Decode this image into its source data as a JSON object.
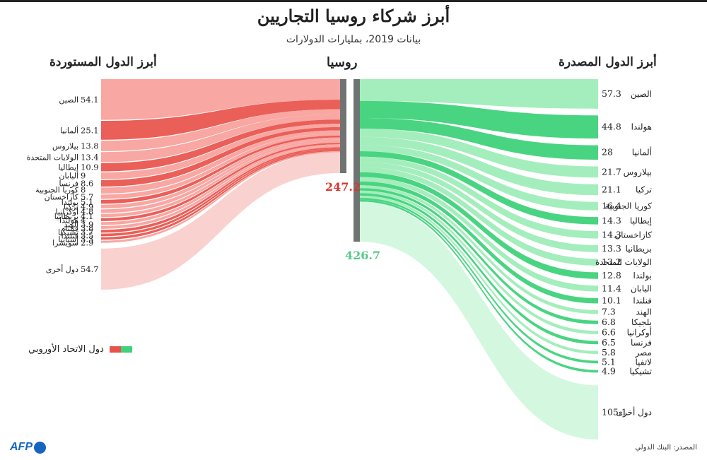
{
  "title": "أبرز شركاء روسيا التجاريين",
  "subtitle": "بيانات 2019، بمليارات الدولارات",
  "center_label": "روسيا",
  "left_header": "أبرز الدول المستوردة",
  "right_header": "أبرز الدول المصدرة",
  "legend_label": "دول الاتحاد الأوروبي",
  "source": "المصدر: البنك الدولي",
  "logo": "AFP",
  "colors": {
    "import_eu": "#e8514a",
    "import_other": "#f7a09b",
    "import_others_total": "#f9cdcb",
    "import_total_text": "#d9352d",
    "export_eu": "#3fd27a",
    "export_other": "#9eedb8",
    "export_others_total": "#d2f7de",
    "export_total_text": "#56c98a",
    "center_bar": "#6f7473"
  },
  "chart_data": [
    {
      "type": "sankey",
      "name": "أبرز الدول المستوردة",
      "total": "247.2",
      "series": [
        {
          "label": "الصين",
          "value": 54.1,
          "eu": false
        },
        {
          "label": "ألمانيا",
          "value": 25.1,
          "eu": true
        },
        {
          "label": "بيلاروس",
          "value": 13.8,
          "eu": false
        },
        {
          "label": "الولايات المتحدة",
          "value": 13.4,
          "eu": false
        },
        {
          "label": "إيطاليا",
          "value": 10.9,
          "eu": true
        },
        {
          "label": "اليابان",
          "value": 9,
          "eu": false
        },
        {
          "label": "فرنسا",
          "value": 8.6,
          "eu": true
        },
        {
          "label": "كوريا الجنوبية",
          "value": 8,
          "eu": false
        },
        {
          "label": "كازاخستان",
          "value": 5.7,
          "eu": false
        },
        {
          "label": "بولندا",
          "value": 5.1,
          "eu": true
        },
        {
          "label": "تركيا",
          "value": 4.9,
          "eu": false
        },
        {
          "label": "أوكرانيا",
          "value": 4.8,
          "eu": false
        },
        {
          "label": "بريطانيا",
          "value": 4.1,
          "eu": false
        },
        {
          "label": "هولندا",
          "value": 4,
          "eu": true
        },
        {
          "label": "الهند",
          "value": 3.9,
          "eu": false
        },
        {
          "label": "فيتنام",
          "value": 3.8,
          "eu": false
        },
        {
          "label": "تشيكيا",
          "value": 3.7,
          "eu": true
        },
        {
          "label": "فنلندا",
          "value": 3.5,
          "eu": true
        },
        {
          "label": "إسبانيا",
          "value": 3.3,
          "eu": true
        },
        {
          "label": "سويسرا",
          "value": 2.9,
          "eu": false
        },
        {
          "label": "دول أخرى",
          "value": 54.7,
          "eu": false,
          "others": true
        }
      ]
    },
    {
      "type": "sankey",
      "name": "أبرز الدول المصدرة",
      "total": "426.7",
      "series": [
        {
          "label": "الصين",
          "value": 57.3,
          "eu": false
        },
        {
          "label": "هولندا",
          "value": 44.8,
          "eu": true
        },
        {
          "label": "ألمانيا",
          "value": 28,
          "eu": true
        },
        {
          "label": "بيلاروس",
          "value": 21.7,
          "eu": false
        },
        {
          "label": "تركيا",
          "value": 21.1,
          "eu": false
        },
        {
          "label": "كوريا الجنوبية",
          "value": 16.4,
          "eu": false
        },
        {
          "label": "إيطاليا",
          "value": 14.3,
          "eu": true
        },
        {
          "label": "كازاخستان",
          "value": 14.3,
          "eu": false
        },
        {
          "label": "بريطانيا",
          "value": 13.3,
          "eu": false
        },
        {
          "label": "الولايات المتحدة",
          "value": 13.2,
          "eu": false
        },
        {
          "label": "بولندا",
          "value": 12.8,
          "eu": true
        },
        {
          "label": "اليابان",
          "value": 11.4,
          "eu": false
        },
        {
          "label": "فنلندا",
          "value": 10.1,
          "eu": true
        },
        {
          "label": "الهند",
          "value": 7.3,
          "eu": false
        },
        {
          "label": "بلجيكا",
          "value": 6.8,
          "eu": true
        },
        {
          "label": "أوكرانيا",
          "value": 6.6,
          "eu": false
        },
        {
          "label": "فرنسا",
          "value": 6.5,
          "eu": true
        },
        {
          "label": "مصر",
          "value": 5.8,
          "eu": false
        },
        {
          "label": "لاتفيا",
          "value": 5.1,
          "eu": true
        },
        {
          "label": "تشيكيا",
          "value": 4.9,
          "eu": true
        },
        {
          "label": "دول أخرى",
          "value": 105.1,
          "eu": false,
          "others": true
        }
      ]
    }
  ]
}
